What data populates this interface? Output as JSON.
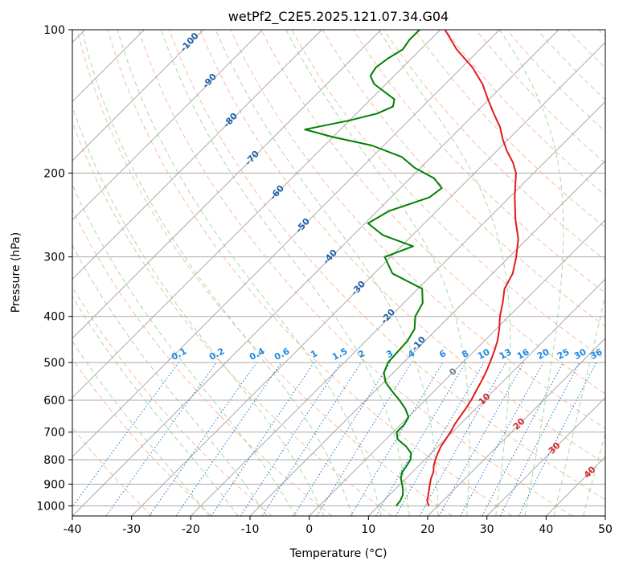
{
  "chart_data": {
    "type": "line",
    "title": "wetPf2_C2E5.2025.121.07.34.G04",
    "xlabel": "Temperature (°C)",
    "ylabel": "Pressure (hPa)",
    "xlim": [
      -40,
      50
    ],
    "ylim": [
      1050,
      100
    ],
    "y_scale": "log",
    "x_ticks": [
      -40,
      -30,
      -20,
      -10,
      0,
      10,
      20,
      30,
      40,
      50
    ],
    "y_ticks": [
      1000,
      900,
      800,
      700,
      600,
      500,
      400,
      300,
      200,
      100
    ],
    "grid": true,
    "series": [
      {
        "role": "temperature",
        "color": "#e41a1c",
        "points": [
          [
            1000,
            18.5
          ],
          [
            975,
            17.3
          ],
          [
            950,
            16.6
          ],
          [
            925,
            15.8
          ],
          [
            900,
            15.0
          ],
          [
            875,
            14.2
          ],
          [
            850,
            13.6
          ],
          [
            825,
            12.6
          ],
          [
            800,
            11.8
          ],
          [
            775,
            11.1
          ],
          [
            750,
            10.5
          ],
          [
            725,
            10.1
          ],
          [
            700,
            9.7
          ],
          [
            675,
            9.1
          ],
          [
            650,
            8.7
          ],
          [
            625,
            8.3
          ],
          [
            600,
            7.8
          ],
          [
            575,
            7.1
          ],
          [
            550,
            6.4
          ],
          [
            525,
            5.6
          ],
          [
            500,
            4.6
          ],
          [
            475,
            3.5
          ],
          [
            450,
            2.2
          ],
          [
            425,
            0.5
          ],
          [
            400,
            -1.5
          ],
          [
            375,
            -3.3
          ],
          [
            350,
            -5.4
          ],
          [
            325,
            -6.6
          ],
          [
            300,
            -8.8
          ],
          [
            275,
            -11.5
          ],
          [
            250,
            -15.3
          ],
          [
            225,
            -19.1
          ],
          [
            200,
            -23.0
          ],
          [
            190,
            -25.3
          ],
          [
            180,
            -28.2
          ],
          [
            170,
            -30.9
          ],
          [
            160,
            -33.5
          ],
          [
            150,
            -36.8
          ],
          [
            140,
            -40.2
          ],
          [
            130,
            -43.7
          ],
          [
            120,
            -48.2
          ],
          [
            110,
            -53.9
          ],
          [
            100,
            -59.2
          ]
        ]
      },
      {
        "role": "dewpoint",
        "color": "#008000",
        "points": [
          [
            1000,
            13.0
          ],
          [
            975,
            12.8
          ],
          [
            950,
            12.3
          ],
          [
            925,
            11.4
          ],
          [
            900,
            10.3
          ],
          [
            875,
            9.1
          ],
          [
            850,
            8.3
          ],
          [
            825,
            8.0
          ],
          [
            800,
            7.6
          ],
          [
            775,
            6.6
          ],
          [
            750,
            4.6
          ],
          [
            725,
            2.0
          ],
          [
            700,
            0.6
          ],
          [
            675,
            0.6
          ],
          [
            650,
            0.0
          ],
          [
            625,
            -1.9
          ],
          [
            600,
            -4.3
          ],
          [
            575,
            -7.0
          ],
          [
            550,
            -9.7
          ],
          [
            525,
            -11.6
          ],
          [
            500,
            -12.6
          ],
          [
            475,
            -12.8
          ],
          [
            450,
            -13.0
          ],
          [
            425,
            -13.8
          ],
          [
            400,
            -15.8
          ],
          [
            375,
            -16.8
          ],
          [
            350,
            -19.3
          ],
          [
            325,
            -26.9
          ],
          [
            300,
            -31.0
          ],
          [
            285,
            -28.0
          ],
          [
            270,
            -35.0
          ],
          [
            255,
            -39.5
          ],
          [
            240,
            -38.0
          ],
          [
            225,
            -33.5
          ],
          [
            215,
            -33.0
          ],
          [
            205,
            -36.0
          ],
          [
            195,
            -41.0
          ],
          [
            185,
            -45.0
          ],
          [
            175,
            -52.0
          ],
          [
            168,
            -60.0
          ],
          [
            162,
            -66.0
          ],
          [
            155,
            -60.0
          ],
          [
            150,
            -56.5
          ],
          [
            145,
            -55.0
          ],
          [
            140,
            -56.0
          ],
          [
            130,
            -62.0
          ],
          [
            125,
            -64.0
          ],
          [
            120,
            -64.5
          ],
          [
            115,
            -64.0
          ],
          [
            110,
            -63.0
          ],
          [
            105,
            -63.5
          ],
          [
            100,
            -63.5
          ]
        ]
      }
    ],
    "dry_adiabat_labels": [
      "-100",
      "-90",
      "-80",
      "-70",
      "-60",
      "-50",
      "-40",
      "-30",
      "-20",
      "-10"
    ],
    "moist_adiabat_labels": [
      "0",
      "10",
      "20",
      "30",
      "40"
    ],
    "mixing_ratio_labels": [
      "0.1",
      "0.2",
      "0.4",
      "0.6",
      "1",
      "1.5",
      "2",
      "3",
      "4",
      "6",
      "8",
      "10",
      "13",
      "16",
      "20",
      "25",
      "30",
      "36"
    ],
    "colors": {
      "isotherm": "#a9a9a9",
      "isobar": "#a9a9a9",
      "dry_adiabat": "#f4a582",
      "moist_adiabat": "#8fc98f",
      "mixing_ratio": "#1f78d1",
      "dry_label": "#1f5fa8",
      "moist_label": "#d62728",
      "mixing_label": "#1e88e5"
    }
  }
}
